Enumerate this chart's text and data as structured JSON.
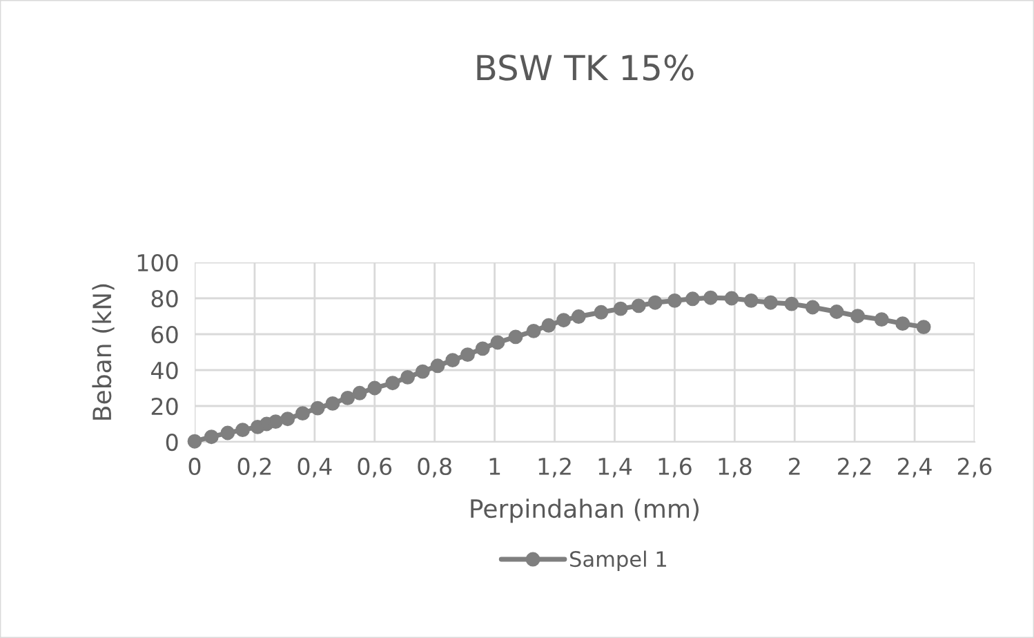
{
  "chart_data": {
    "type": "line",
    "title": "BSW TK 15%",
    "xlabel": "Perpindahan (mm)",
    "ylabel": "Beban (kN)",
    "x": [
      0,
      0.056,
      0.11,
      0.16,
      0.21,
      0.24,
      0.27,
      0.31,
      0.36,
      0.41,
      0.46,
      0.51,
      0.55,
      0.6,
      0.66,
      0.71,
      0.76,
      0.81,
      0.86,
      0.91,
      0.96,
      1.01,
      1.07,
      1.13,
      1.18,
      1.23,
      1.28,
      1.355,
      1.42,
      1.48,
      1.535,
      1.6,
      1.66,
      1.72,
      1.79,
      1.855,
      1.92,
      1.99,
      2.06,
      2.14,
      2.21,
      2.29,
      2.36,
      2.43
    ],
    "series": [
      {
        "name": "Sampel 1",
        "color": "#7f7f7f",
        "values": [
          0.3,
          2.8,
          5,
          6.7,
          8.3,
          10,
          11.3,
          12.8,
          15.9,
          18.8,
          21.4,
          24.5,
          27.2,
          30,
          32.8,
          36,
          39.2,
          42.4,
          45.5,
          48.6,
          52,
          55.4,
          58.5,
          61.8,
          64.9,
          67.8,
          69.8,
          72.2,
          74.2,
          75.8,
          77.6,
          78.7,
          79.7,
          80.3,
          80,
          78.7,
          77.6,
          76.9,
          75,
          72.5,
          70.1,
          68.2,
          65.9,
          64
        ]
      }
    ],
    "xlim": [
      0,
      2.6
    ],
    "xticks": [
      0,
      {
        "value": 0.2,
        "label": "0,2"
      },
      {
        "value": 0.4,
        "label": "0,4"
      },
      {
        "value": 0.6,
        "label": "0,6"
      },
      {
        "value": 0.8,
        "label": "0,8"
      },
      1,
      {
        "value": 1.2,
        "label": "1,2"
      },
      {
        "value": 1.4,
        "label": "1,4"
      },
      {
        "value": 1.6,
        "label": "1,6"
      },
      {
        "value": 1.8,
        "label": "1,8"
      },
      2,
      {
        "value": 2.2,
        "label": "2,2"
      },
      {
        "value": 2.4,
        "label": "2,4"
      },
      {
        "value": 2.6,
        "label": "2,6"
      }
    ],
    "ylim": [
      0,
      100
    ],
    "yticks": [
      0,
      20,
      40,
      60,
      80,
      100
    ],
    "grid": true,
    "legend": "bottom",
    "marker": "circle",
    "line_style": "solid"
  }
}
